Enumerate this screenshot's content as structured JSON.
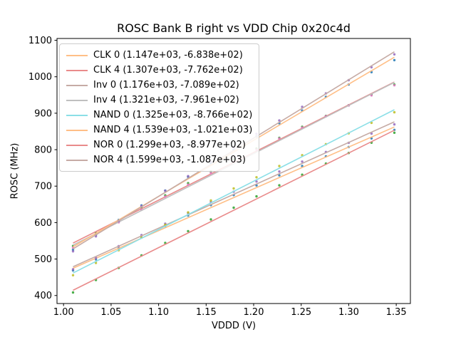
{
  "chart_data": {
    "type": "scatter",
    "title": "ROSC Bank B right vs VDD Chip 0x20c4d",
    "xlabel": "VDDD (V)",
    "ylabel": "ROSC (MHz)",
    "xlim": [
      0.9931,
      1.3649
    ],
    "ylim": [
      378,
      1105
    ],
    "xticks": [
      1.0,
      1.05,
      1.1,
      1.15,
      1.2,
      1.25,
      1.3,
      1.35
    ],
    "xtick_labels": [
      "1.00",
      "1.05",
      "1.10",
      "1.15",
      "1.20",
      "1.25",
      "1.30",
      "1.35"
    ],
    "yticks": [
      400,
      500,
      600,
      700,
      800,
      900,
      1000,
      1100
    ],
    "ytick_labels": [
      "400",
      "500",
      "600",
      "700",
      "800",
      "900",
      "1000",
      "1100"
    ],
    "grid": false,
    "legend_position": "upper left",
    "x": [
      1.01,
      1.034,
      1.058,
      1.082,
      1.107,
      1.131,
      1.155,
      1.179,
      1.203,
      1.227,
      1.251,
      1.276,
      1.3,
      1.324,
      1.348
    ],
    "series": [
      {
        "name": "CLK 0",
        "legend_label": "CLK 0 (1.147e+03, -6.838e+02)",
        "fit_slope": 1147.0,
        "fit_intercept": -683.8,
        "line_color": "#ffbf87",
        "marker_color": "#1f77b4",
        "residuals": [
          -6,
          -3,
          0,
          2,
          5,
          6,
          7,
          7,
          6,
          6,
          4,
          2,
          0,
          -4,
          -8
        ]
      },
      {
        "name": "CLK 4",
        "legend_label": "CLK 4 (1.307e+03, -7.762e+02)",
        "fit_slope": 1307.0,
        "fit_intercept": -776.2,
        "line_color": "#e98b8b",
        "marker_color": "#2ca02c",
        "residuals": [
          -8,
          -4,
          -1,
          3,
          4,
          6,
          7,
          8,
          7,
          5,
          4,
          1,
          -1,
          -3,
          -7
        ]
      },
      {
        "name": "Inv 0",
        "legend_label": "Inv 0 (1.176e+03, -7.089e+02)",
        "fit_slope": 1176.0,
        "fit_intercept": -708.9,
        "line_color": "#c6aba5",
        "marker_color": "#9467bd",
        "residuals": [
          -7,
          -4,
          0,
          2,
          4,
          5,
          7,
          7,
          7,
          6,
          5,
          2,
          -1,
          -4,
          -7
        ]
      },
      {
        "name": "Inv 4",
        "legend_label": "Inv 4 (1.321e+03, -7.961e+02)",
        "fit_slope": 1321.0,
        "fit_intercept": -796.1,
        "line_color": "#bfbfbf",
        "marker_color": "#e377c2",
        "residuals": [
          -7,
          -3,
          -1,
          2,
          5,
          6,
          6,
          7,
          7,
          6,
          4,
          2,
          0,
          -4,
          -8
        ]
      },
      {
        "name": "NAND 0",
        "legend_label": "NAND 0 (1.325e+03, -8.766e+02)",
        "fit_slope": 1325.0,
        "fit_intercept": -876.6,
        "line_color": "#8bdfe7",
        "marker_color": "#bcbd22",
        "residuals": [
          -6,
          -4,
          -1,
          2,
          4,
          6,
          7,
          8,
          7,
          6,
          4,
          1,
          -1,
          -4,
          -7
        ]
      },
      {
        "name": "NAND 4",
        "legend_label": "NAND 4 (1.539e+03, -1.021e+03)",
        "fit_slope": 1539.0,
        "fit_intercept": -1021.0,
        "line_color": "#ffbf87",
        "marker_color": "#1f77b4",
        "residuals": [
          -8,
          -4,
          0,
          3,
          5,
          6,
          7,
          7,
          6,
          5,
          3,
          2,
          -1,
          -4,
          -8
        ]
      },
      {
        "name": "NOR 0",
        "legend_label": "NOR 0 (1.299e+03, -8.977e+02)",
        "fit_slope": 1299.0,
        "fit_intercept": -897.7,
        "line_color": "#e98b8b",
        "marker_color": "#2ca02c",
        "residuals": [
          -6,
          -3,
          -1,
          2,
          4,
          5,
          6,
          7,
          7,
          6,
          4,
          2,
          0,
          -3,
          -7
        ]
      },
      {
        "name": "NOR 4",
        "legend_label": "NOR 4 (1.599e+03, -1.087e+03)",
        "fit_slope": 1599.0,
        "fit_intercept": -1087.0,
        "line_color": "#c6aba5",
        "marker_color": "#9467bd",
        "residuals": [
          -7,
          -4,
          -1,
          2,
          4,
          6,
          7,
          7,
          7,
          5,
          4,
          1,
          -1,
          -4,
          -7
        ]
      }
    ]
  }
}
